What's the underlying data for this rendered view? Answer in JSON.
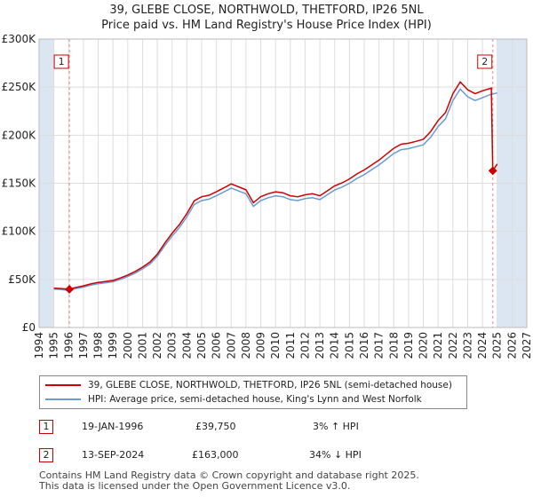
{
  "title_line_1": "39, GLEBE CLOSE, NORTHWOLD, THETFORD, IP26 5NL",
  "title_line_2": "Price paid vs. HM Land Registry's House Price Index (HPI)",
  "colors": {
    "price_paid": "#cc0000",
    "hpi": "#6b9bd2",
    "shade": "#dce6f2",
    "grid": "#dddddd",
    "vline": "#e88888"
  },
  "chart_data": {
    "type": "line",
    "x_range": [
      1994,
      2027
    ],
    "ylim": [
      0,
      300000
    ],
    "x_ticks": [
      1994,
      1995,
      1996,
      1997,
      1998,
      1999,
      2000,
      2001,
      2002,
      2003,
      2004,
      2005,
      2006,
      2007,
      2008,
      2009,
      2010,
      2011,
      2012,
      2013,
      2014,
      2015,
      2016,
      2017,
      2018,
      2019,
      2020,
      2021,
      2022,
      2023,
      2024,
      2025,
      2026,
      2027
    ],
    "y_ticks": [
      0,
      50000,
      100000,
      150000,
      200000,
      250000,
      300000
    ],
    "y_tick_labels": [
      "£0",
      "£50K",
      "£100K",
      "£150K",
      "£200K",
      "£250K",
      "£300K"
    ],
    "shaded_before": 1995.0,
    "shaded_after": 2025.0,
    "hpi_series": {
      "name": "HPI: Average price, semi-detached house, King's Lynn and West Norfolk",
      "x": [
        1995.0,
        1995.5,
        1996.0,
        1996.5,
        1997.0,
        1997.5,
        1998.0,
        1998.5,
        1999.0,
        1999.5,
        2000.0,
        2000.5,
        2001.0,
        2001.5,
        2002.0,
        2002.5,
        2003.0,
        2003.5,
        2004.0,
        2004.5,
        2005.0,
        2005.5,
        2006.0,
        2006.5,
        2007.0,
        2007.5,
        2008.0,
        2008.5,
        2009.0,
        2009.5,
        2010.0,
        2010.5,
        2011.0,
        2011.5,
        2012.0,
        2012.5,
        2013.0,
        2013.5,
        2014.0,
        2014.5,
        2015.0,
        2015.5,
        2016.0,
        2016.5,
        2017.0,
        2017.5,
        2018.0,
        2018.5,
        2019.0,
        2019.5,
        2020.0,
        2020.5,
        2021.0,
        2021.5,
        2022.0,
        2022.5,
        2023.0,
        2023.5,
        2024.0,
        2024.5,
        2025.0
      ],
      "y": [
        40000,
        39500,
        38500,
        40500,
        42000,
        44000,
        45500,
        46500,
        47500,
        50000,
        53000,
        56500,
        61000,
        66000,
        74000,
        85000,
        95000,
        104000,
        115000,
        128000,
        132000,
        133500,
        137000,
        141000,
        145000,
        142000,
        139000,
        126000,
        132000,
        135000,
        137000,
        136000,
        133000,
        132000,
        134000,
        135000,
        133000,
        138000,
        143000,
        146000,
        150000,
        155000,
        159000,
        164000,
        169000,
        175000,
        181000,
        185000,
        186000,
        188000,
        190000,
        198000,
        209000,
        217000,
        236000,
        248000,
        240000,
        236000,
        239000,
        242000,
        244000
      ]
    },
    "price_series": {
      "name": "39, GLEBE CLOSE, NORTHWOLD, THETFORD, IP26 5NL (semi-detached house)",
      "x": [
        1995.0,
        1995.5,
        1996.0,
        1996.5,
        1997.0,
        1997.5,
        1998.0,
        1998.5,
        1999.0,
        1999.5,
        2000.0,
        2000.5,
        2001.0,
        2001.5,
        2002.0,
        2002.5,
        2003.0,
        2003.5,
        2004.0,
        2004.5,
        2005.0,
        2005.5,
        2006.0,
        2006.5,
        2007.0,
        2007.5,
        2008.0,
        2008.5,
        2009.0,
        2009.5,
        2010.0,
        2010.5,
        2011.0,
        2011.5,
        2012.0,
        2012.5,
        2013.0,
        2013.5,
        2014.0,
        2014.5,
        2015.0,
        2015.5,
        2016.0,
        2016.5,
        2017.0,
        2017.5,
        2018.0,
        2018.5,
        2019.0,
        2019.5,
        2020.0,
        2020.5,
        2021.0,
        2021.5,
        2022.0,
        2022.5,
        2023.0,
        2023.5,
        2024.0,
        2024.6,
        2024.7,
        2025.0
      ],
      "y": [
        41000,
        40500,
        39750,
        41700,
        43300,
        45300,
        46900,
        47900,
        48900,
        51500,
        54600,
        58200,
        62800,
        68000,
        76200,
        87600,
        97900,
        107100,
        118500,
        131800,
        136000,
        137500,
        141100,
        145200,
        149400,
        146300,
        143200,
        129800,
        136000,
        139100,
        141100,
        140100,
        137000,
        136000,
        138000,
        139100,
        137000,
        142100,
        147300,
        150400,
        154500,
        159700,
        163800,
        168900,
        174100,
        180300,
        186400,
        190600,
        191600,
        193600,
        195700,
        203900,
        215300,
        223500,
        243100,
        255400,
        247200,
        243100,
        246200,
        249000,
        163000,
        170000
      ]
    },
    "sales": [
      {
        "label": "1",
        "x": 1996.05,
        "price": 39750
      },
      {
        "label": "2",
        "x": 2024.7,
        "price": 163000
      }
    ]
  },
  "legend": {
    "price_paid_label": "39, GLEBE CLOSE, NORTHWOLD, THETFORD, IP26 5NL (semi-detached house)",
    "hpi_label": "HPI: Average price, semi-detached house, King's Lynn and West Norfolk"
  },
  "sales_table": [
    {
      "label": "1",
      "date": "19-JAN-1996",
      "price": "£39,750",
      "hpi_change": "3% ↑ HPI"
    },
    {
      "label": "2",
      "date": "13-SEP-2024",
      "price": "£163,000",
      "hpi_change": "34% ↓ HPI"
    }
  ],
  "footer_line_1": "Contains HM Land Registry data © Crown copyright and database right 2025.",
  "footer_line_2": "This data is licensed under the Open Government Licence v3.0."
}
